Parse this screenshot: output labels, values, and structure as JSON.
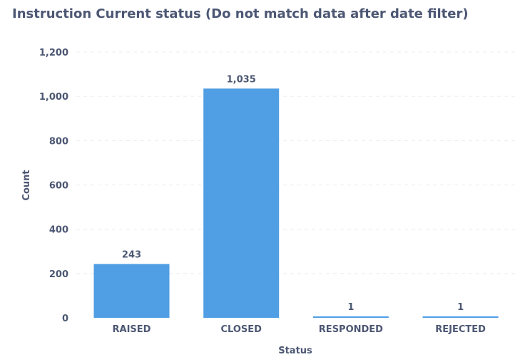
{
  "chart_data": {
    "type": "bar",
    "title": "Instruction Current status (Do not match data after date filter)",
    "xlabel": "Status",
    "ylabel": "Count",
    "categories": [
      "RAISED",
      "CLOSED",
      "RESPONDED",
      "REJECTED"
    ],
    "values": [
      243,
      1035,
      1,
      1
    ],
    "data_labels": [
      "243",
      "1,035",
      "1",
      "1"
    ],
    "ylim": [
      0,
      1200
    ],
    "yticks": [
      0,
      200,
      400,
      600,
      800,
      1000,
      1200
    ],
    "ytick_labels": [
      "0",
      "200",
      "400",
      "600",
      "800",
      "1,000",
      "1,200"
    ],
    "grid": true,
    "bar_color": "#509ee3",
    "text_color": "#4c5773",
    "grid_color": "#e8ecf0"
  }
}
